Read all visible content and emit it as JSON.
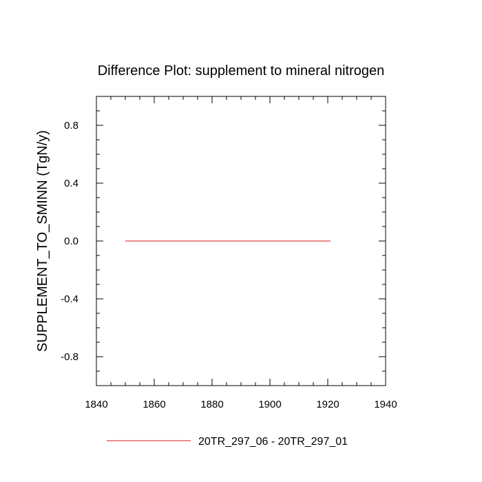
{
  "chart_data": {
    "type": "line",
    "title": "Difference Plot: supplement to mineral nitrogen",
    "xlabel": "",
    "ylabel": "SUPPLEMENT_TO_SMINN  (TgN/y)",
    "xlim": [
      1840,
      1940
    ],
    "ylim": [
      -1.0,
      1.0
    ],
    "x_ticks": [
      1840,
      1860,
      1880,
      1900,
      1920,
      1940
    ],
    "x_tick_labels": [
      "1840",
      "1860",
      "1880",
      "1900",
      "1920",
      "1940"
    ],
    "y_ticks": [
      -0.8,
      -0.4,
      0.0,
      0.4,
      0.8
    ],
    "y_tick_labels": [
      "-0.8",
      "-0.4",
      "0.0",
      "0.4",
      "0.8"
    ],
    "grid": false,
    "legend_position": "bottom",
    "series": [
      {
        "name": "20TR_297_06 - 20TR_297_01",
        "color": "#e06666",
        "x": [
          1850,
          1921
        ],
        "y": [
          0.0,
          0.0
        ]
      }
    ]
  }
}
